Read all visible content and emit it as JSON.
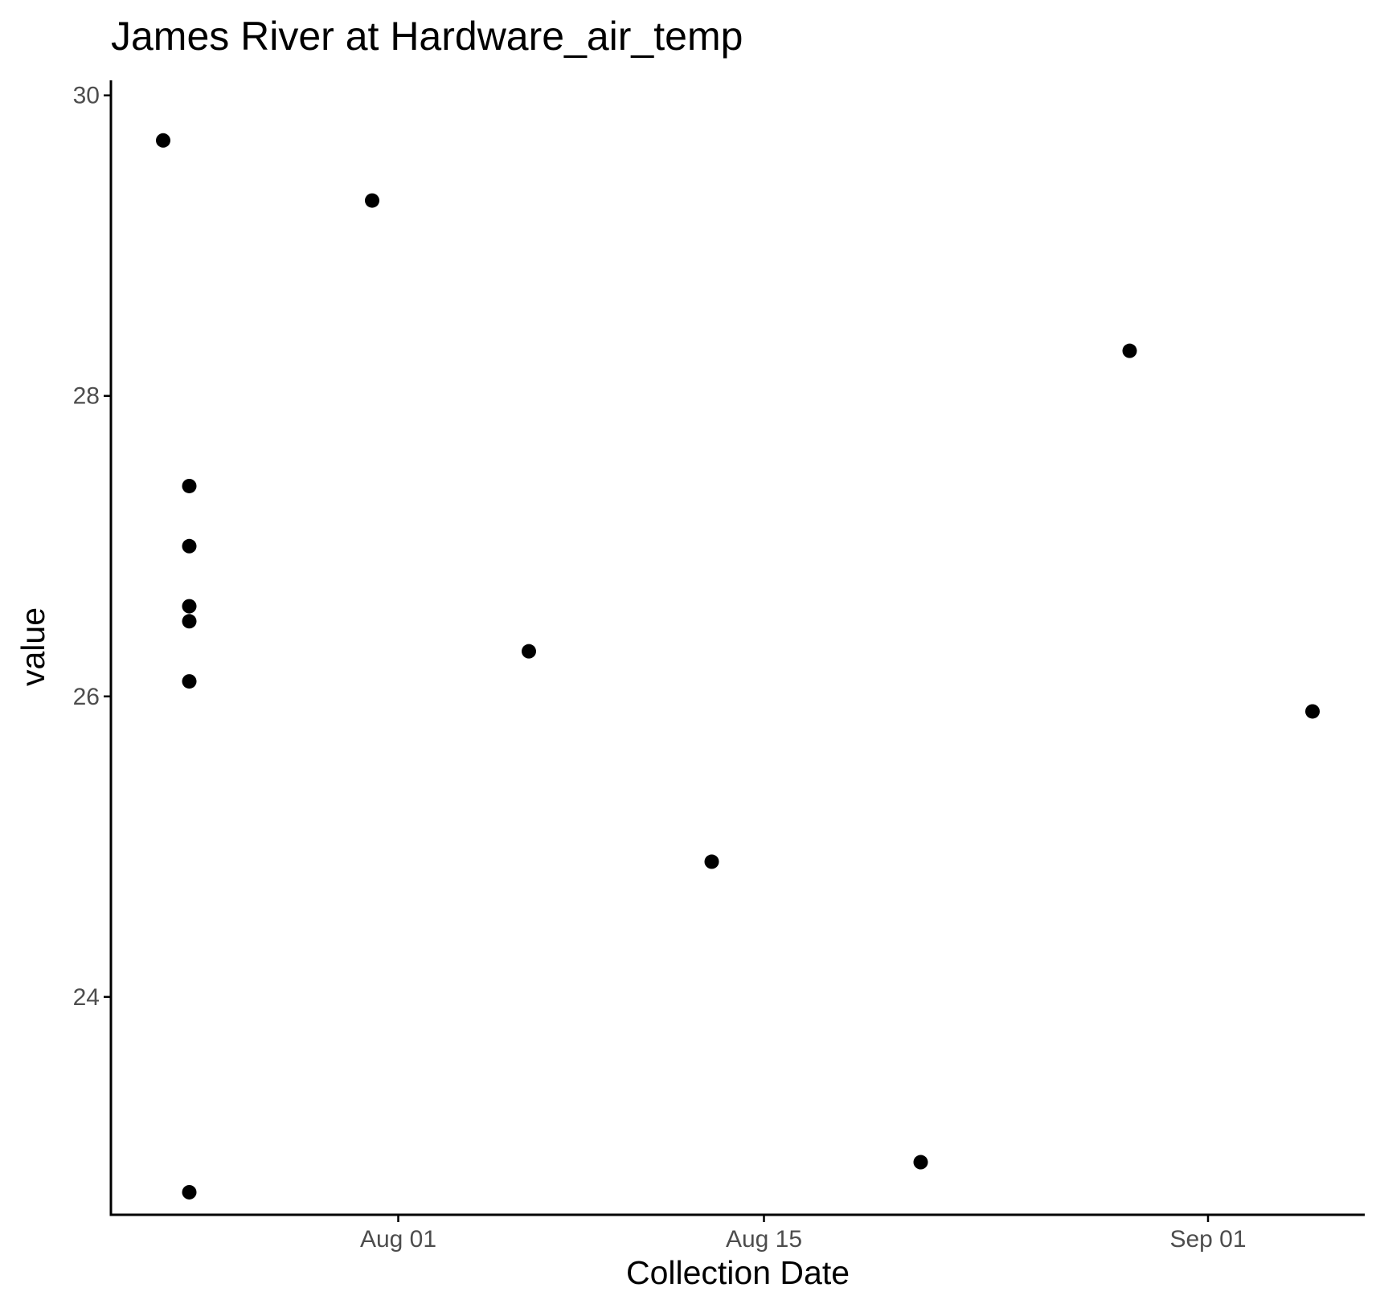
{
  "chart_data": {
    "type": "scatter",
    "title": "James River at Hardware_air_temp",
    "xlabel": "Collection Date",
    "ylabel": "value",
    "x_ticks": [
      {
        "date": "2024-08-01",
        "label": "Aug 01"
      },
      {
        "date": "2024-08-15",
        "label": "Aug 15"
      },
      {
        "date": "2024-09-01",
        "label": "Sep 01"
      }
    ],
    "y_ticks": [
      24,
      26,
      28,
      30
    ],
    "xlim": [
      "2024-07-21",
      "2024-09-07"
    ],
    "ylim": [
      22.55,
      30.1
    ],
    "grid": false,
    "point_color": "#000000",
    "points": [
      {
        "x": "2024-07-23",
        "y": 29.7
      },
      {
        "x": "2024-07-24",
        "y": 27.4
      },
      {
        "x": "2024-07-24",
        "y": 27.0
      },
      {
        "x": "2024-07-24",
        "y": 26.6
      },
      {
        "x": "2024-07-24",
        "y": 26.5
      },
      {
        "x": "2024-07-24",
        "y": 26.1
      },
      {
        "x": "2024-07-24",
        "y": 22.7
      },
      {
        "x": "2024-07-31",
        "y": 29.3
      },
      {
        "x": "2024-08-06",
        "y": 26.3
      },
      {
        "x": "2024-08-13",
        "y": 24.9
      },
      {
        "x": "2024-08-21",
        "y": 22.9
      },
      {
        "x": "2024-08-29",
        "y": 28.3
      },
      {
        "x": "2024-09-05",
        "y": 25.9
      }
    ]
  }
}
